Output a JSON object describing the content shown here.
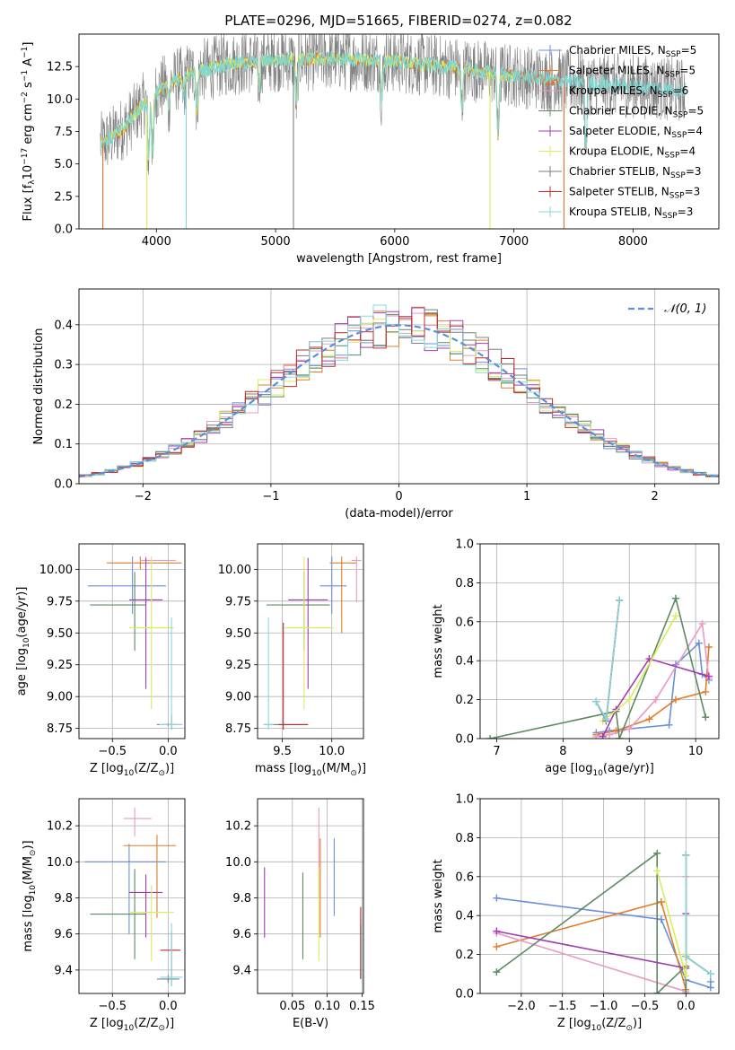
{
  "figure_title": "PLATE=0296, MJD=51665, FIBERID=0274, z=0.082",
  "colors": {
    "Chabrier MILES": "#6b8fdc",
    "Salpeter MILES": "#e07d2c",
    "Kroupa MILES": "#e89bc4",
    "Chabrier ELODIE": "#5b8a63",
    "Salpeter ELODIE": "#a43bb5",
    "Kroupa ELODIE": "#d8ec5c",
    "Chabrier STELIB": "#7f7f7f",
    "Salpeter STELIB": "#c0282a",
    "Kroupa STELIB": "#85d9dd",
    "data": "#808080",
    "spec_orange": "#e0702c",
    "spec_green": "#d8ec5c",
    "spec_cyan": "#7fd8d2",
    "normal": "#5b8fd6"
  },
  "chart_data": [
    {
      "id": "spectrum",
      "type": "line",
      "title": "",
      "xlabel": "wavelength [Angstrom, rest frame]",
      "ylabel": "Flux [f_λ 10^-17 erg cm^-2 s^-1 A^-1]",
      "xlim": [
        3350,
        8720
      ],
      "ylim": [
        0,
        15
      ],
      "xticks": [
        4000,
        5000,
        6000,
        7000,
        8000
      ],
      "yticks": [
        0.0,
        2.5,
        5.0,
        7.5,
        10.0,
        12.5
      ],
      "legend_position": "top-right",
      "legend": [
        {
          "base": "Chabrier MILES, N",
          "sub": "SSP",
          "tail": "=5"
        },
        {
          "base": "Salpeter MILES, N",
          "sub": "SSP",
          "tail": "=5"
        },
        {
          "base": "Kroupa MILES, N",
          "sub": "SSP",
          "tail": "=6"
        },
        {
          "base": "Chabrier ELODIE, N",
          "sub": "SSP",
          "tail": "=5"
        },
        {
          "base": "Salpeter ELODIE, N",
          "sub": "SSP",
          "tail": "=4"
        },
        {
          "base": "Kroupa ELODIE, N",
          "sub": "SSP",
          "tail": "=4"
        },
        {
          "base": "Chabrier STELIB, N",
          "sub": "SSP",
          "tail": "=3"
        },
        {
          "base": "Salpeter STELIB, N",
          "sub": "SSP",
          "tail": "=3"
        },
        {
          "base": "Kroupa STELIB, N",
          "sub": "SSP",
          "tail": "=3"
        }
      ],
      "continuum": [
        [
          3550,
          6.6
        ],
        [
          3650,
          7.2
        ],
        [
          3750,
          8.0
        ],
        [
          3850,
          9.2
        ],
        [
          3950,
          10.2
        ],
        [
          4100,
          11.2
        ],
        [
          4300,
          12.0
        ],
        [
          4600,
          12.7
        ],
        [
          5000,
          13.0
        ],
        [
          5500,
          13.1
        ],
        [
          6000,
          12.9
        ],
        [
          6500,
          12.4
        ],
        [
          7000,
          11.8
        ],
        [
          7500,
          11.3
        ],
        [
          8000,
          11.0
        ],
        [
          8400,
          10.7
        ]
      ],
      "absorption_lines": [
        [
          3934,
          4.5
        ],
        [
          3969,
          5.0
        ],
        [
          4102,
          2.0
        ],
        [
          4227,
          1.5
        ],
        [
          4340,
          3.0
        ],
        [
          4861,
          2.0
        ],
        [
          5175,
          3.5
        ],
        [
          5890,
          3.0
        ],
        [
          6563,
          3.0
        ],
        [
          6867,
          5.0
        ],
        [
          7605,
          5.0
        ]
      ]
    },
    {
      "id": "residuals",
      "type": "step",
      "xlabel": "(data-model)/error",
      "ylabel": "Normed distribution",
      "xlim": [
        -2.5,
        2.5
      ],
      "ylim": [
        0,
        0.49
      ],
      "xticks": [
        -2,
        -1,
        0,
        1,
        2
      ],
      "yticks": [
        0.0,
        0.1,
        0.2,
        0.3,
        0.4
      ],
      "legend_position": "top-right",
      "legend_label": "𝒩(0, 1)"
    },
    {
      "id": "age_vs_Z",
      "type": "errorbar",
      "xlabel": {
        "base": "Z [log",
        "sub": "10",
        "mid": "(Z/Z",
        "sub2": "⊙",
        "tail": ")]"
      },
      "ylabel": {
        "base": "age  [log",
        "sub": "10",
        "tail": "(age/yr)]"
      },
      "xlim": [
        -0.8,
        0.15
      ],
      "ylim": [
        8.67,
        10.2
      ],
      "xticks": [
        -0.5,
        0.0
      ],
      "yticks": [
        8.75,
        9.0,
        9.25,
        9.5,
        9.75,
        10.0
      ],
      "points": [
        {
          "series": "Chabrier MILES",
          "x": -0.32,
          "xerr": [
            0.4,
            0.3
          ],
          "y": 9.87,
          "yerr": [
            0.22,
            0.23
          ]
        },
        {
          "series": "Salpeter MILES",
          "x": -0.25,
          "xerr": [
            0.3,
            0.37
          ],
          "y": 10.05,
          "yerr": [
            0.05,
            0.05
          ]
        },
        {
          "series": "Kroupa MILES",
          "x": -0.2,
          "xerr": [
            0.05,
            0.27
          ],
          "y": 10.07,
          "yerr": [
            0.03,
            0.03
          ]
        },
        {
          "series": "Chabrier ELODIE",
          "x": -0.3,
          "xerr": [
            0.4,
            0.1
          ],
          "y": 9.72,
          "yerr": [
            0.36,
            0.26
          ]
        },
        {
          "series": "Salpeter ELODIE",
          "x": -0.2,
          "xerr": [
            0.15,
            0.15
          ],
          "y": 9.76,
          "yerr": [
            0.7,
            0.33
          ]
        },
        {
          "series": "Kroupa ELODIE",
          "x": -0.15,
          "xerr": [
            0.2,
            0.2
          ],
          "y": 9.54,
          "yerr": [
            0.64,
            0.56
          ]
        },
        {
          "series": "Chabrier STELIB",
          "x": 0.0,
          "xerr": [
            0.1,
            0.12
          ],
          "y": 8.78,
          "yerr": [
            0.01,
            0.01
          ]
        },
        {
          "series": "Salpeter STELIB",
          "x": 0.03,
          "xerr": [
            0.08,
            0.05
          ],
          "y": 8.78,
          "yerr": [
            0.04,
            0.08
          ]
        },
        {
          "series": "Kroupa STELIB",
          "x": 0.03,
          "xerr": [
            0.11,
            0.1
          ],
          "y": 8.78,
          "yerr": [
            0.04,
            0.84
          ]
        }
      ]
    },
    {
      "id": "age_vs_mass",
      "type": "errorbar",
      "xlabel": {
        "base": "mass [log",
        "sub": "10",
        "mid": "(M/M",
        "sub2": "⊙",
        "tail": ")]"
      },
      "ylabel": "",
      "xlim": [
        9.25,
        10.32
      ],
      "ylim": [
        8.67,
        10.2
      ],
      "xticks": [
        9.5,
        10.0
      ],
      "yticks": [
        8.75,
        9.0,
        9.25,
        9.5,
        9.75,
        10.0
      ],
      "points": [
        {
          "series": "Chabrier MILES",
          "x": 10.0,
          "xerr": [
            0.12,
            0.15
          ],
          "y": 9.87,
          "yerr": [
            0.22,
            0.23
          ]
        },
        {
          "series": "Salpeter MILES",
          "x": 10.1,
          "xerr": [
            0.12,
            0.15
          ],
          "y": 10.05,
          "yerr": [
            0.55,
            0.05
          ]
        },
        {
          "series": "Kroupa MILES",
          "x": 10.25,
          "xerr": [
            0.05,
            0.05
          ],
          "y": 10.07,
          "yerr": [
            0.33,
            0.03
          ]
        },
        {
          "series": "Chabrier ELODIE",
          "x": 9.72,
          "xerr": [
            0.38,
            0.26
          ],
          "y": 9.72,
          "yerr": [
            0.36,
            0.26
          ]
        },
        {
          "series": "Salpeter ELODIE",
          "x": 9.76,
          "xerr": [
            0.2,
            0.2
          ],
          "y": 9.76,
          "yerr": [
            0.7,
            0.33
          ]
        },
        {
          "series": "Kroupa ELODIE",
          "x": 9.72,
          "xerr": [
            0.2,
            0.3
          ],
          "y": 9.54,
          "yerr": [
            0.64,
            0.56
          ]
        },
        {
          "series": "Chabrier STELIB",
          "x": 9.36,
          "xerr": [
            0.05,
            0.4
          ],
          "y": 8.78,
          "yerr": [
            0.01,
            0.01
          ]
        },
        {
          "series": "Salpeter STELIB",
          "x": 9.51,
          "xerr": [
            0.05,
            0.25
          ],
          "y": 8.78,
          "yerr": [
            0.04,
            0.8
          ]
        },
        {
          "series": "Kroupa STELIB",
          "x": 9.36,
          "xerr": [
            0.05,
            0.05
          ],
          "y": 8.78,
          "yerr": [
            0.04,
            0.84
          ]
        }
      ]
    },
    {
      "id": "weight_vs_age",
      "type": "line",
      "xlabel": {
        "base": "age  [log",
        "sub": "10",
        "tail": "(age/yr)]"
      },
      "ylabel": "mass weight",
      "xlim": [
        6.75,
        10.35
      ],
      "ylim": [
        0,
        1.0
      ],
      "xticks": [
        7,
        8,
        9,
        10
      ],
      "yticks": [
        0.0,
        0.2,
        0.4,
        0.6,
        0.8,
        1.0
      ],
      "series": [
        {
          "name": "Chabrier MILES",
          "x": [
            8.5,
            8.7,
            9.6,
            9.7,
            10.05,
            10.1,
            10.2
          ],
          "y": [
            0.03,
            0.04,
            0.07,
            0.38,
            0.49,
            0.33,
            0.3
          ]
        },
        {
          "name": "Salpeter MILES",
          "x": [
            8.5,
            8.8,
            9.3,
            9.7,
            10.15,
            10.2
          ],
          "y": [
            0.02,
            0.04,
            0.1,
            0.2,
            0.24,
            0.47
          ]
        },
        {
          "name": "Kroupa MILES",
          "x": [
            8.5,
            8.7,
            9.0,
            9.4,
            10.1,
            10.2
          ],
          "y": [
            0.01,
            0.02,
            0.05,
            0.2,
            0.59,
            0.31
          ]
        },
        {
          "name": "Chabrier ELODIE",
          "x": [
            6.9,
            8.8,
            8.85,
            9.7,
            10.15
          ],
          "y": [
            0.0,
            0.14,
            0.0,
            0.72,
            0.11
          ]
        },
        {
          "name": "Salpeter ELODIE",
          "x": [
            8.6,
            8.8,
            9.3,
            10.2
          ],
          "y": [
            0.01,
            0.15,
            0.41,
            0.32
          ]
        },
        {
          "name": "Kroupa ELODIE",
          "x": [
            8.6,
            9.0,
            9.7
          ],
          "y": [
            0.09,
            0.2,
            0.63
          ]
        },
        {
          "name": "Chabrier STELIB",
          "x": [
            8.5,
            8.65,
            8.85
          ],
          "y": [
            0.19,
            0.09,
            0.71
          ]
        },
        {
          "name": "Salpeter STELIB",
          "x": [
            8.5,
            8.65,
            8.85
          ],
          "y": [
            0.19,
            0.1,
            0.71
          ]
        },
        {
          "name": "Kroupa STELIB",
          "x": [
            8.5,
            8.65,
            8.85
          ],
          "y": [
            0.19,
            0.1,
            0.71
          ]
        }
      ]
    },
    {
      "id": "mass_vs_Z",
      "type": "errorbar",
      "xlabel": {
        "base": "Z [log",
        "sub": "10",
        "mid": "(Z/Z",
        "sub2": "⊙",
        "tail": ")]"
      },
      "ylabel": {
        "base": "mass [log",
        "sub": "10",
        "mid": "(M/M",
        "sub2": "⊙",
        "tail": ")]"
      },
      "xlim": [
        -0.8,
        0.15
      ],
      "ylim": [
        9.27,
        10.35
      ],
      "xticks": [
        -0.5,
        0.0
      ],
      "yticks": [
        9.4,
        9.6,
        9.8,
        10.0,
        10.2
      ],
      "points": [
        {
          "series": "Chabrier MILES",
          "x": -0.35,
          "xerr": [
            0.4,
            0.33
          ],
          "y": 10.0,
          "yerr": [
            0.4,
            0.1
          ]
        },
        {
          "series": "Salpeter MILES",
          "x": -0.1,
          "xerr": [
            0.3,
            0.17
          ],
          "y": 10.09,
          "yerr": [
            0.4,
            0.06
          ]
        },
        {
          "series": "Kroupa MILES",
          "x": -0.3,
          "xerr": [
            0.1,
            0.15
          ],
          "y": 10.24,
          "yerr": [
            0.1,
            0.06
          ]
        },
        {
          "series": "Chabrier ELODIE",
          "x": -0.3,
          "xerr": [
            0.4,
            0.1
          ],
          "y": 9.71,
          "yerr": [
            0.25,
            0.25
          ]
        },
        {
          "series": "Salpeter ELODIE",
          "x": -0.2,
          "xerr": [
            0.15,
            0.15
          ],
          "y": 9.83,
          "yerr": [
            0.25,
            0.1
          ]
        },
        {
          "series": "Kroupa ELODIE",
          "x": -0.15,
          "xerr": [
            0.2,
            0.2
          ],
          "y": 9.72,
          "yerr": [
            0.27,
            0.15
          ]
        },
        {
          "series": "Chabrier STELIB",
          "x": 0.0,
          "xerr": [
            0.1,
            0.1
          ],
          "y": 9.35,
          "yerr": [
            0.02,
            0.02
          ]
        },
        {
          "series": "Salpeter STELIB",
          "x": 0.03,
          "xerr": [
            0.1,
            0.08
          ],
          "y": 9.51,
          "yerr": [
            0.2,
            0.1
          ]
        },
        {
          "series": "Kroupa STELIB",
          "x": 0.03,
          "xerr": [
            0.1,
            0.1
          ],
          "y": 9.36,
          "yerr": [
            0.05,
            0.3
          ]
        }
      ]
    },
    {
      "id": "mass_vs_ebv",
      "type": "errorbar",
      "xlabel": "E(B-V)",
      "ylabel": "",
      "xlim": [
        0.0,
        0.152
      ],
      "ylim": [
        9.27,
        10.35
      ],
      "xticks": [
        0.05,
        0.1,
        0.15
      ],
      "yticks": [
        9.4,
        9.6,
        9.8,
        10.0,
        10.2
      ],
      "points": [
        {
          "series": "Chabrier MILES",
          "x": 0.11,
          "y": 9.92,
          "yerr": [
            0.22,
            0.21
          ]
        },
        {
          "series": "Salpeter MILES",
          "x": 0.09,
          "y": 9.83,
          "yerr": [
            0.25,
            0.3
          ]
        },
        {
          "series": "Kroupa MILES",
          "x": 0.088,
          "y": 10.05,
          "yerr": [
            0.25,
            0.25
          ]
        },
        {
          "series": "Chabrier ELODIE",
          "x": 0.065,
          "y": 9.71,
          "yerr": [
            0.25,
            0.23
          ]
        },
        {
          "series": "Salpeter ELODIE",
          "x": 0.01,
          "y": 9.77,
          "yerr": [
            0.19,
            0.2
          ]
        },
        {
          "series": "Kroupa ELODIE",
          "x": 0.088,
          "y": 9.7,
          "yerr": [
            0.25,
            0.27
          ]
        },
        {
          "series": "Chabrier STELIB",
          "x": 0.148,
          "y": 9.5,
          "yerr": [
            0.15,
            0.15
          ]
        },
        {
          "series": "Salpeter STELIB",
          "x": 0.148,
          "y": 9.5,
          "yerr": [
            0.15,
            0.25
          ]
        },
        {
          "series": "Kroupa STELIB",
          "x": 0.15,
          "y": 9.5,
          "yerr": [
            0.15,
            0.15
          ]
        }
      ]
    },
    {
      "id": "weight_vs_Z",
      "type": "line",
      "xlabel": {
        "base": "Z [log",
        "sub": "10",
        "mid": "(Z/Z",
        "sub2": "⊙",
        "tail": ")]"
      },
      "ylabel": "mass weight",
      "xlim": [
        -2.5,
        0.4
      ],
      "ylim": [
        0,
        1.0
      ],
      "xticks": [
        -2.0,
        -1.5,
        -1.0,
        -0.5,
        0.0
      ],
      "yticks": [
        0.0,
        0.2,
        0.4,
        0.6,
        0.8,
        1.0
      ],
      "series": [
        {
          "name": "Chabrier MILES",
          "x": [
            -2.3,
            -0.3,
            0.0,
            0.3,
            0.3
          ],
          "y": [
            0.49,
            0.38,
            0.07,
            0.03,
            0.06
          ]
        },
        {
          "name": "Salpeter MILES",
          "x": [
            -2.3,
            -0.3,
            0.0,
            0.0
          ],
          "y": [
            0.24,
            0.47,
            0.02,
            0.2
          ]
        },
        {
          "name": "Kroupa MILES",
          "x": [
            -2.3,
            0.0,
            0.0
          ],
          "y": [
            0.31,
            0.01,
            0.6
          ]
        },
        {
          "name": "Chabrier ELODIE",
          "x": [
            -2.3,
            -0.35,
            -0.35,
            0.0,
            0.0
          ],
          "y": [
            0.11,
            0.72,
            0.0,
            0.14,
            0.0
          ]
        },
        {
          "name": "Salpeter ELODIE",
          "x": [
            -2.3,
            0.0,
            0.0
          ],
          "y": [
            0.32,
            0.13,
            0.41
          ]
        },
        {
          "name": "Kroupa ELODIE",
          "x": [
            -0.35,
            0.0,
            0.0
          ],
          "y": [
            0.63,
            0.09,
            0.2
          ]
        },
        {
          "name": "Chabrier STELIB",
          "x": [
            0.0,
            0.0,
            0.3
          ],
          "y": [
            0.71,
            0.19,
            0.1
          ]
        },
        {
          "name": "Salpeter STELIB",
          "x": [
            0.0,
            0.0,
            0.3
          ],
          "y": [
            0.71,
            0.19,
            0.1
          ]
        },
        {
          "name": "Kroupa STELIB",
          "x": [
            0.0,
            0.0,
            0.3
          ],
          "y": [
            0.71,
            0.19,
            0.1
          ]
        }
      ]
    }
  ]
}
